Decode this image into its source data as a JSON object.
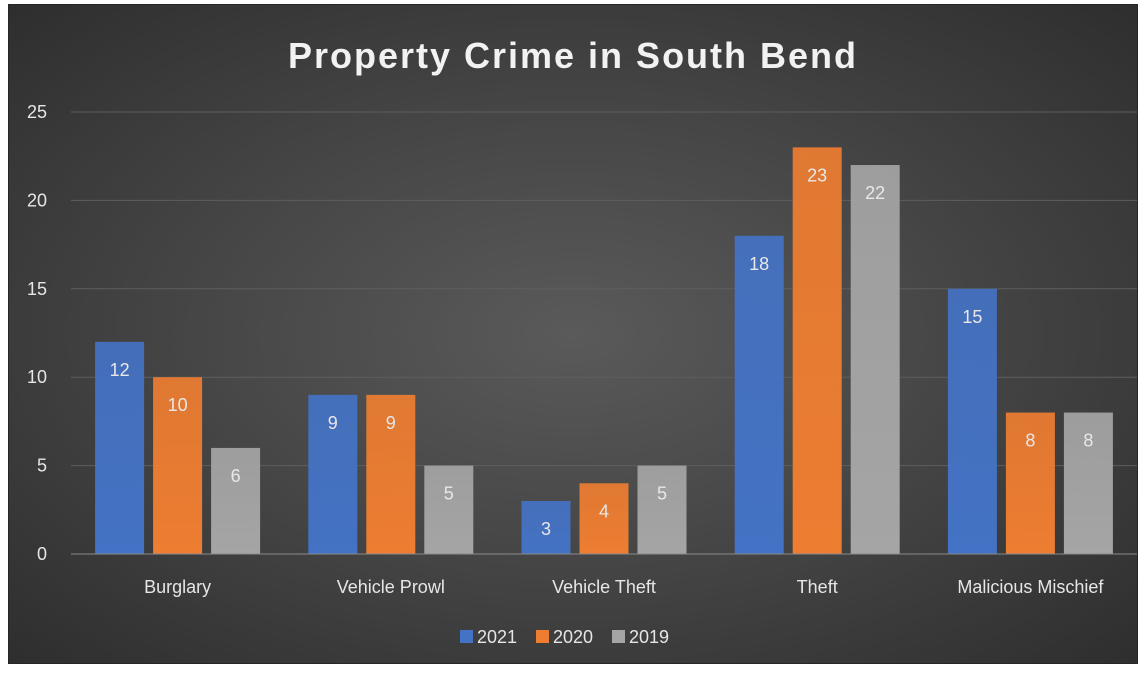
{
  "colors": {
    "background": "#404040",
    "gridline": "#5e5e5e",
    "text": "#e6e6e6"
  },
  "chart_data": {
    "type": "bar",
    "title": "Property Crime in South Bend",
    "xlabel": "",
    "ylabel": "",
    "ylim": [
      0,
      25
    ],
    "yticks": [
      0,
      5,
      10,
      15,
      20,
      25
    ],
    "grid": true,
    "legend_position": "bottom",
    "categories": [
      "Burglary",
      "Vehicle Prowl",
      "Vehicle Theft",
      "Theft",
      "Malicious Mischief"
    ],
    "series": [
      {
        "name": "2021",
        "color": "#4472C4",
        "values": [
          12,
          9,
          3,
          18,
          15
        ]
      },
      {
        "name": "2020",
        "color": "#ED7D31",
        "values": [
          10,
          9,
          4,
          23,
          8
        ]
      },
      {
        "name": "2019",
        "color": "#A5A5A5",
        "values": [
          6,
          5,
          5,
          22,
          8
        ]
      }
    ]
  }
}
